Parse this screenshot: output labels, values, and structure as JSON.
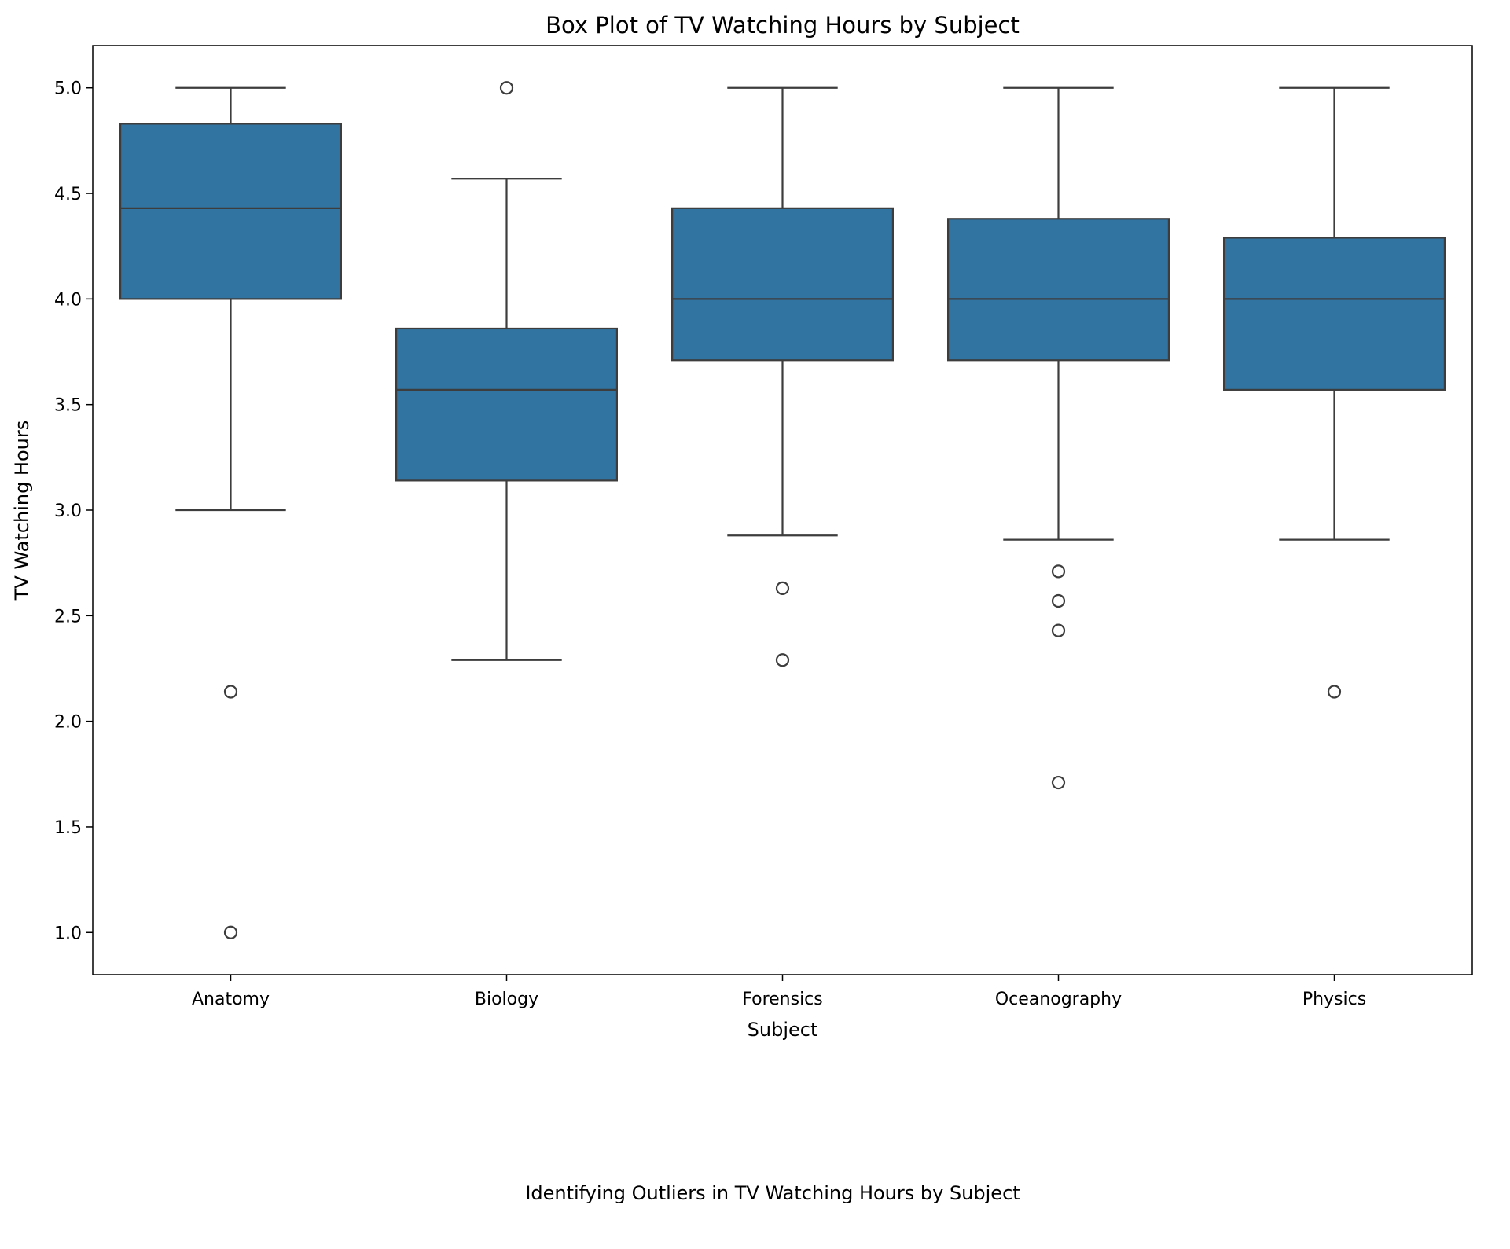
{
  "chart_data": {
    "type": "boxplot",
    "title": "Box Plot of TV Watching Hours by Subject",
    "xlabel": "Subject",
    "ylabel": "TV Watching Hours",
    "caption": "Identifying Outliers in TV Watching Hours by Subject",
    "ylim": [
      0.8,
      5.2
    ],
    "yticks": [
      "1.0",
      "1.5",
      "2.0",
      "2.5",
      "3.0",
      "3.5",
      "4.0",
      "4.5",
      "5.0"
    ],
    "grid": false,
    "legend": "none",
    "box_color": "#3274a1",
    "line_color": "#3d3d3d",
    "categories": [
      "Anatomy",
      "Biology",
      "Forensics",
      "Oceanography",
      "Physics"
    ],
    "boxes": [
      {
        "category": "Anatomy",
        "whisker_low": 3.0,
        "q1": 4.0,
        "median": 4.43,
        "q3": 4.83,
        "whisker_high": 5.0,
        "outliers": [
          2.14,
          1.0
        ]
      },
      {
        "category": "Biology",
        "whisker_low": 2.29,
        "q1": 3.14,
        "median": 3.57,
        "q3": 3.86,
        "whisker_high": 4.57,
        "outliers": [
          5.0
        ]
      },
      {
        "category": "Forensics",
        "whisker_low": 2.88,
        "q1": 3.71,
        "median": 4.0,
        "q3": 4.43,
        "whisker_high": 5.0,
        "outliers": [
          2.63,
          2.29
        ]
      },
      {
        "category": "Oceanography",
        "whisker_low": 2.86,
        "q1": 3.71,
        "median": 4.0,
        "q3": 4.38,
        "whisker_high": 5.0,
        "outliers": [
          2.71,
          2.57,
          2.43,
          1.71
        ]
      },
      {
        "category": "Physics",
        "whisker_low": 2.86,
        "q1": 3.57,
        "median": 4.0,
        "q3": 4.29,
        "whisker_high": 5.0,
        "outliers": [
          2.14
        ]
      }
    ]
  }
}
